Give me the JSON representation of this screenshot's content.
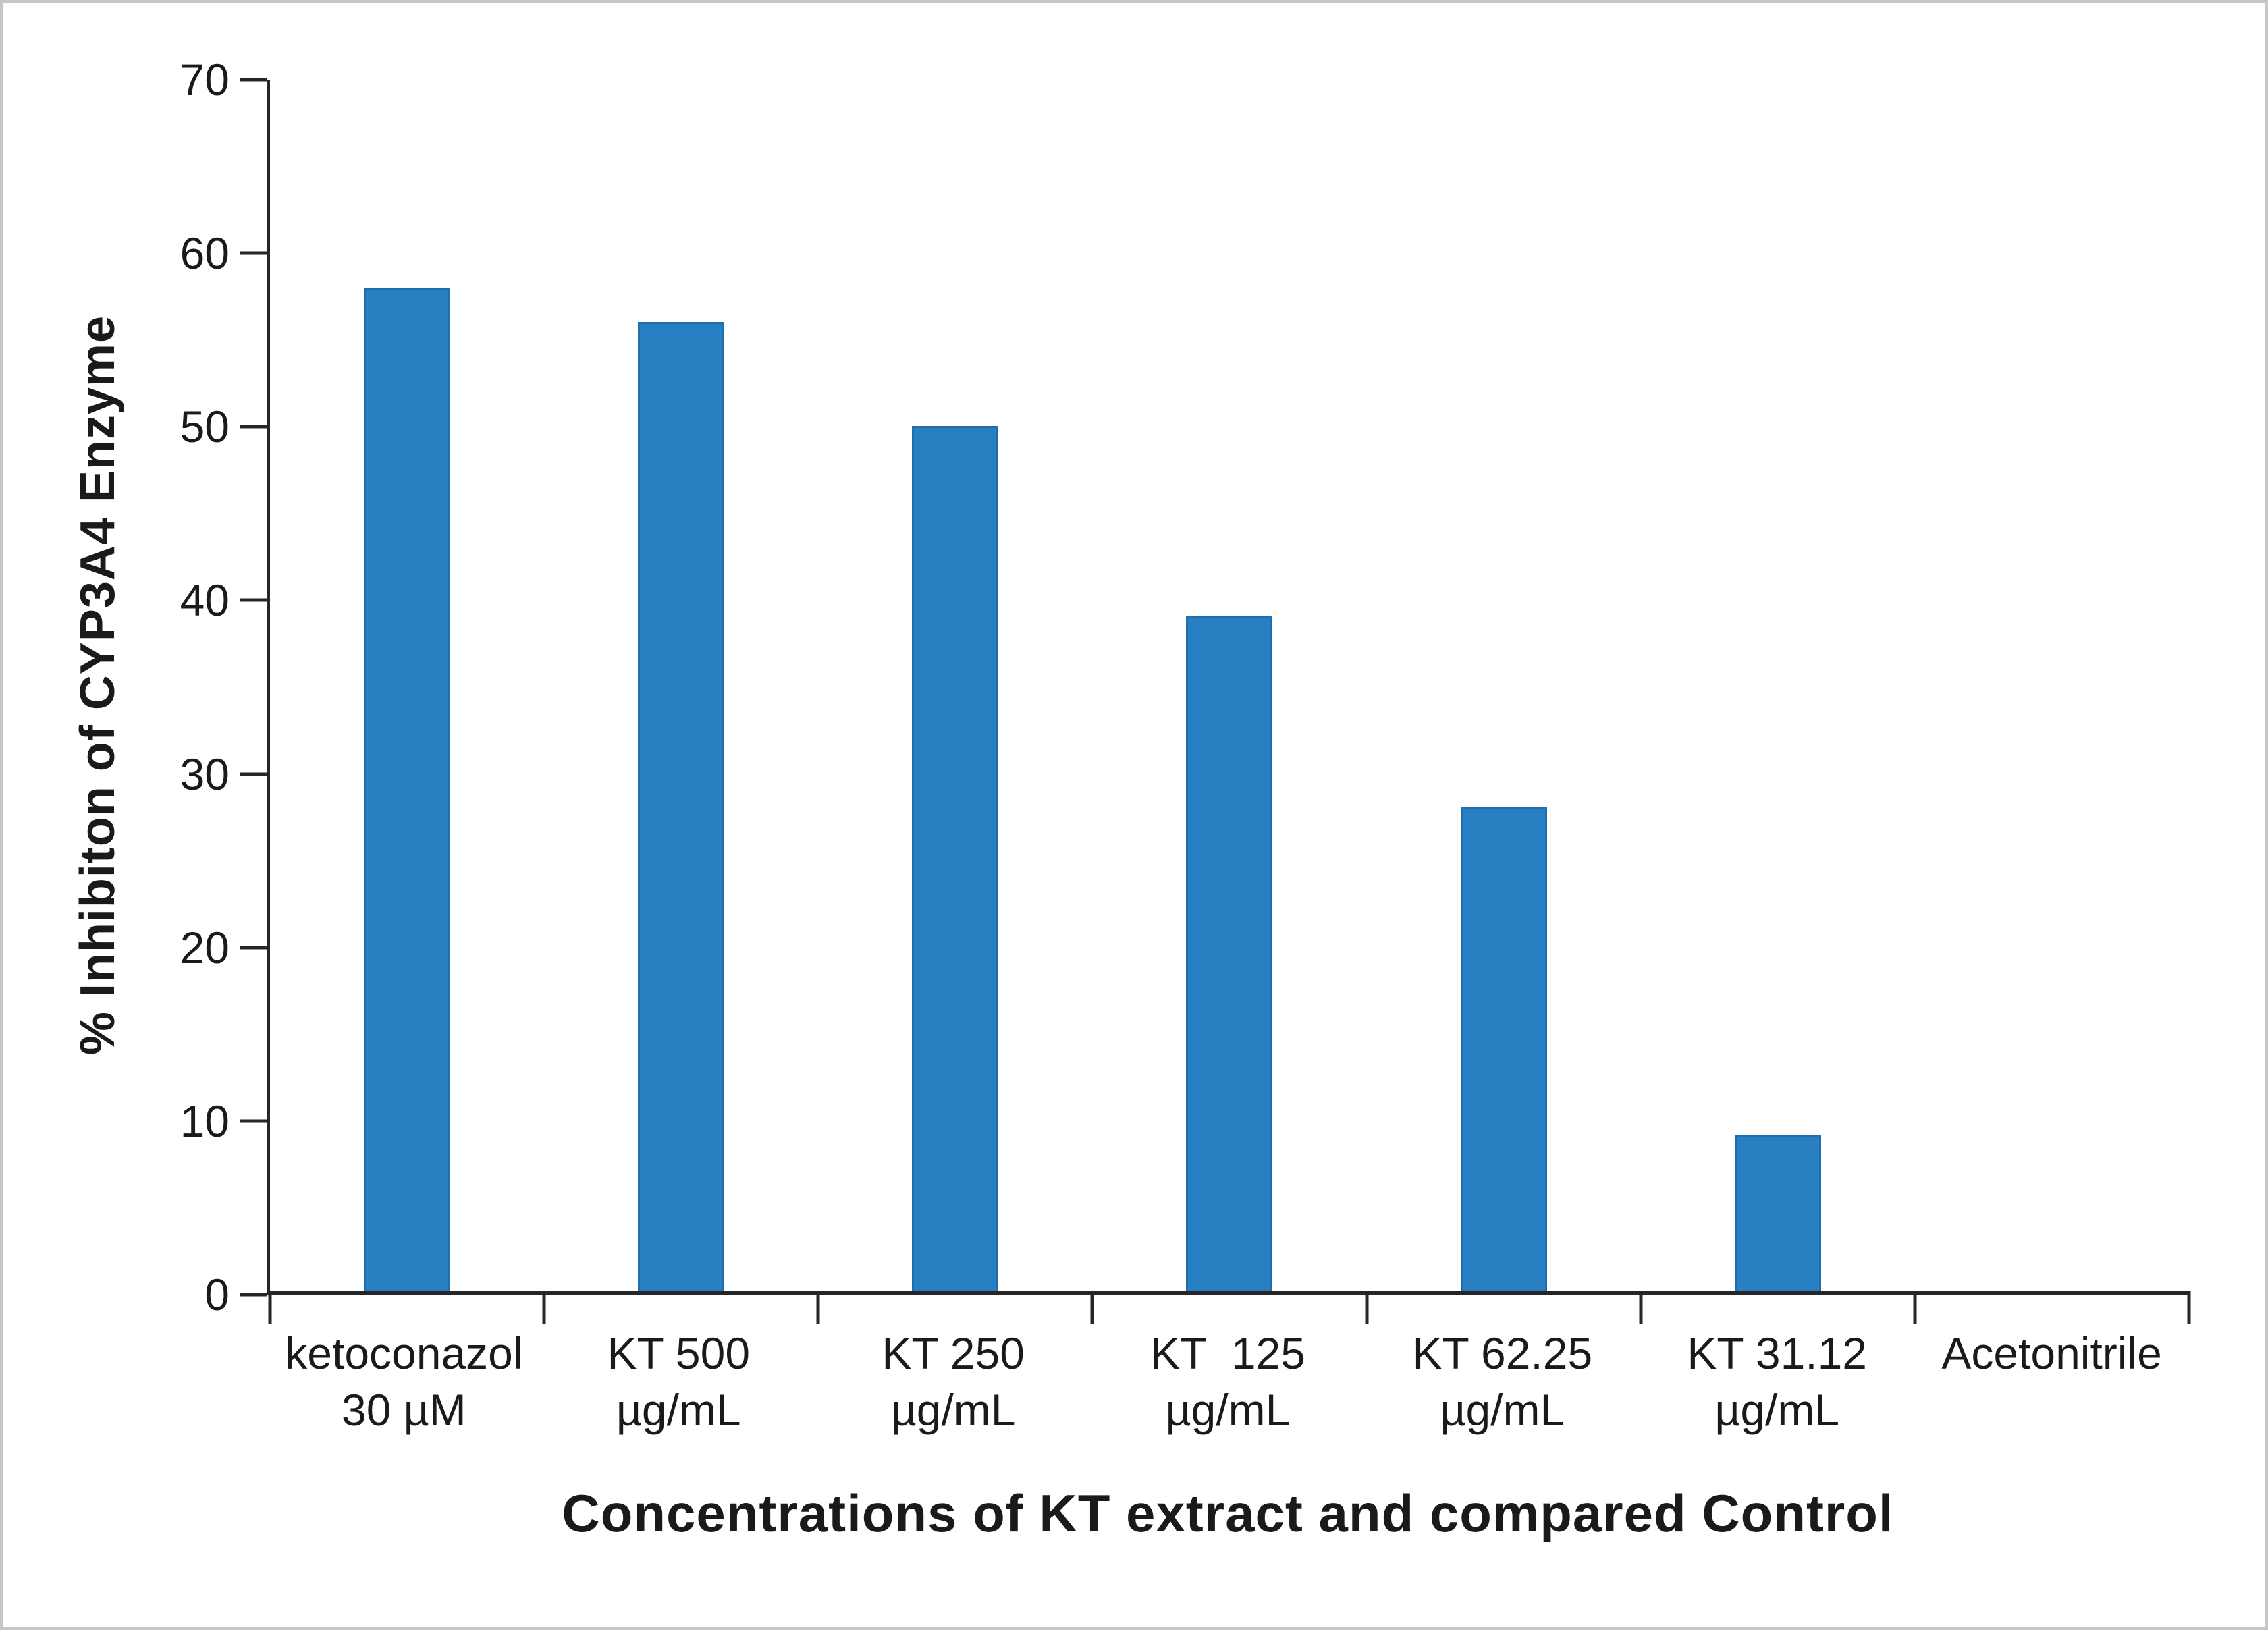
{
  "figure": {
    "background": "#FFFFFF",
    "frame_border_color": "#C6C6C6"
  },
  "chart_data": {
    "type": "bar",
    "title": "",
    "xlabel": "Concentrations of KT extract and compared Control",
    "ylabel": "% Inhibiton of CYP3A4 Enzyme",
    "categories": [
      "ketoconazol\n30 µM",
      "KT 500\nµg/mL",
      "KT 250\nµg/mL",
      "KT  125\nµg/mL",
      "KT 62.25\nµg/mL",
      "KT 31.12\nµg/mL",
      "Acetonitrile"
    ],
    "values": [
      58,
      56,
      50,
      39,
      28,
      9,
      0
    ],
    "ylim": [
      0,
      70
    ],
    "yticks": [
      0,
      10,
      20,
      30,
      40,
      50,
      60,
      70
    ],
    "grid": false,
    "legend_position": "none",
    "bar_color": "#2880C3",
    "bar_edge_color": "#1F6EAD",
    "axis_color": "#262626",
    "text_color": "#1A1A1A"
  }
}
